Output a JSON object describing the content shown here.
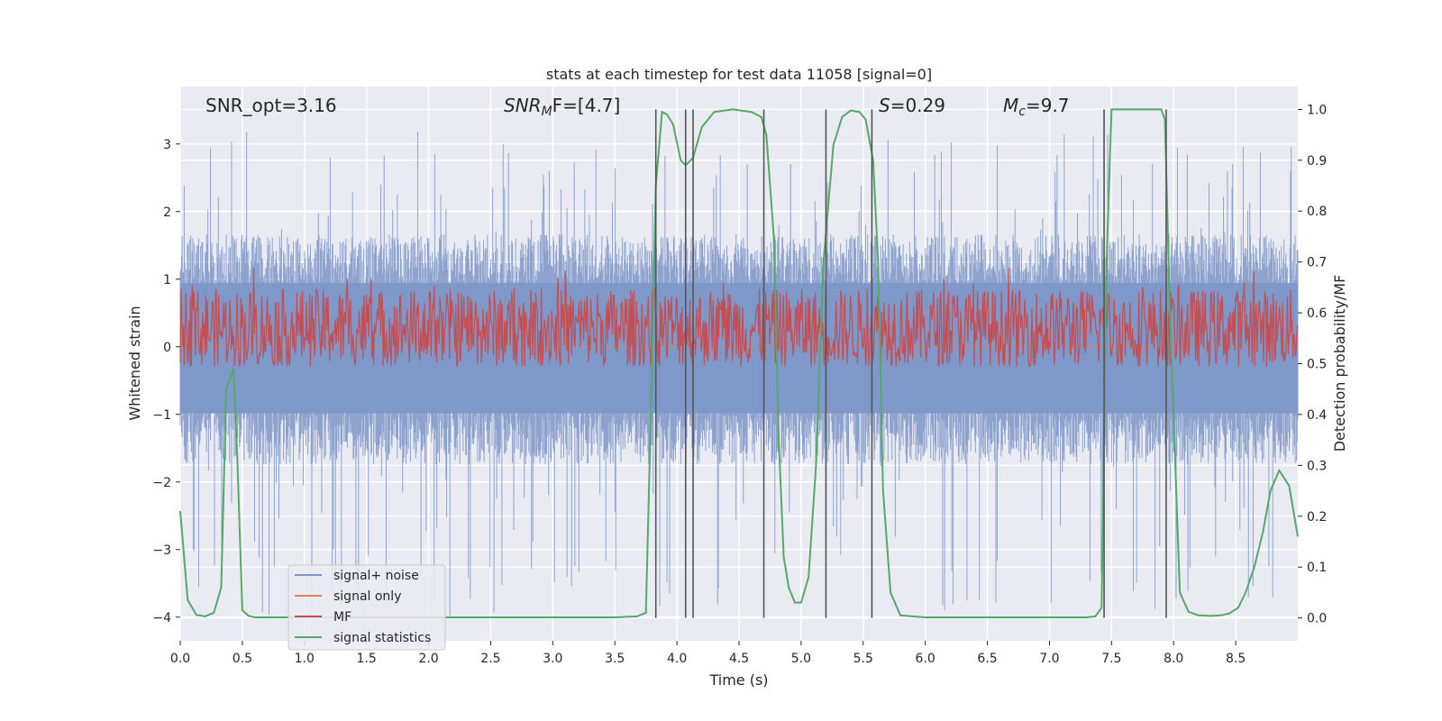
{
  "chart_data": {
    "type": "line",
    "title": "stats at each timestep for test data 11058 [signal=0]",
    "xlabel": "Time (s)",
    "ylabel": "Whitened strain",
    "y2label": "Detection probability/MF",
    "xlim": [
      0.0,
      9.0
    ],
    "ylim": [
      -4.35,
      3.85
    ],
    "y2lim": [
      -0.045,
      1.045
    ],
    "x_ticks": [
      0.0,
      0.5,
      1.0,
      1.5,
      2.0,
      2.5,
      3.0,
      3.5,
      4.0,
      4.5,
      5.0,
      5.5,
      6.0,
      6.5,
      7.0,
      7.5,
      8.0,
      8.5
    ],
    "x_tick_labels": [
      "0.0",
      "0.5",
      "1.0",
      "1.5",
      "2.0",
      "2.5",
      "3.0",
      "3.5",
      "4.0",
      "4.5",
      "5.0",
      "5.5",
      "6.0",
      "6.5",
      "7.0",
      "7.5",
      "8.0",
      "8.5"
    ],
    "y_ticks": [
      -4,
      -3,
      -2,
      -1,
      0,
      1,
      2,
      3
    ],
    "y_tick_labels": [
      "−4",
      "−3",
      "−2",
      "−1",
      "0",
      "1",
      "2",
      "3"
    ],
    "y2_ticks": [
      0.0,
      0.1,
      0.2,
      0.3,
      0.4,
      0.5,
      0.6,
      0.7,
      0.8,
      0.9,
      1.0
    ],
    "y2_tick_labels": [
      "0.0",
      "0.1",
      "0.2",
      "0.3",
      "0.4",
      "0.5",
      "0.6",
      "0.7",
      "0.8",
      "0.9",
      "1.0"
    ],
    "grid": true,
    "annotations": {
      "snr_opt": "SNR_opt=3.16",
      "snr_mf_main": "SNR",
      "snr_mf_sub": "M",
      "snr_mf_tail": "F=[4.7]",
      "s_main": "S",
      "s_tail": "=0.29",
      "mc_main": "M",
      "mc_sub": "c",
      "mc_tail": "=9.7"
    },
    "legend": {
      "position": "lower-left",
      "entries": [
        "signal+ noise",
        "signal only",
        "MF",
        "signal statistics"
      ]
    },
    "colors": {
      "signal_noise": "#7d96c8",
      "signal_only": "#dd8452",
      "mf": "#c44e52",
      "signal_statistics": "#55a868",
      "vlines": "#555555",
      "background": "#eaeaf2"
    },
    "series": [
      {
        "name": "signal+ noise",
        "axis": "left",
        "style": "dense-noise",
        "envelope_upper": 1.15,
        "envelope_lower": -1.2,
        "spike_max": 3.2,
        "spike_min": -4.0
      },
      {
        "name": "signal only",
        "axis": "left",
        "values_constant": 0.0
      },
      {
        "name": "MF",
        "axis": "right",
        "style": "dense-noise",
        "band_low": 0.5,
        "band_high": 0.64,
        "peak_max": 0.69
      },
      {
        "name": "signal statistics",
        "axis": "right",
        "x": [
          0.0,
          0.06,
          0.13,
          0.2,
          0.27,
          0.33,
          0.37,
          0.43,
          0.46,
          0.5,
          0.55,
          0.6,
          1.0,
          2.0,
          3.0,
          3.5,
          3.68,
          3.75,
          3.79,
          3.83,
          3.88,
          3.92,
          3.97,
          4.03,
          4.07,
          4.13,
          4.2,
          4.3,
          4.45,
          4.6,
          4.68,
          4.72,
          4.78,
          4.82,
          4.86,
          4.9,
          4.95,
          5.0,
          5.06,
          5.12,
          5.18,
          5.26,
          5.33,
          5.4,
          5.47,
          5.52,
          5.58,
          5.62,
          5.66,
          5.72,
          5.8,
          6.0,
          7.0,
          7.3,
          7.37,
          7.42,
          7.46,
          7.5,
          7.6,
          7.75,
          7.9,
          7.93,
          7.97,
          8.05,
          8.12,
          8.2,
          8.3,
          8.38,
          8.45,
          8.52,
          8.58,
          8.65,
          8.72,
          8.78,
          8.85,
          8.93,
          9.0
        ],
        "y": [
          0.21,
          0.035,
          0.006,
          0.003,
          0.01,
          0.06,
          0.45,
          0.49,
          0.31,
          0.015,
          0.004,
          0.001,
          0.001,
          0.001,
          0.001,
          0.001,
          0.003,
          0.01,
          0.4,
          0.85,
          0.995,
          0.99,
          0.97,
          0.9,
          0.89,
          0.905,
          0.965,
          0.995,
          1.0,
          0.995,
          0.985,
          0.95,
          0.75,
          0.35,
          0.12,
          0.06,
          0.03,
          0.03,
          0.08,
          0.3,
          0.7,
          0.93,
          0.985,
          0.998,
          0.995,
          0.98,
          0.9,
          0.7,
          0.25,
          0.05,
          0.005,
          0.001,
          0.001,
          0.001,
          0.003,
          0.02,
          0.7,
          1.0,
          1.0,
          1.0,
          1.0,
          0.98,
          0.6,
          0.05,
          0.012,
          0.005,
          0.004,
          0.005,
          0.009,
          0.02,
          0.05,
          0.1,
          0.17,
          0.25,
          0.29,
          0.26,
          0.16
        ]
      }
    ],
    "vlines_x": [
      3.83,
      4.07,
      4.13,
      4.7,
      5.2,
      5.57,
      7.44,
      7.94
    ]
  }
}
